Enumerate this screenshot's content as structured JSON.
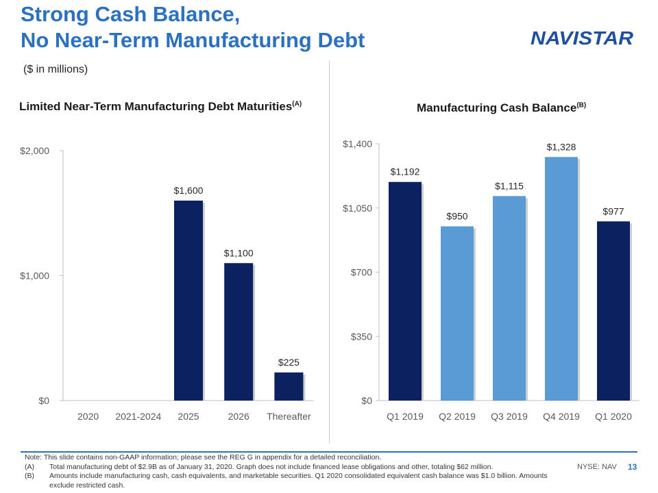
{
  "header": {
    "title_line1": "Strong Cash Balance,",
    "title_line2": "No Near-Term Manufacturing Debt",
    "subtitle": "($ in millions)",
    "logo_text": "NAVISTAR"
  },
  "colors": {
    "title_blue": "#2b71c2",
    "navy": "#0b2160",
    "light_blue": "#5b9bd5",
    "logo_blue": "#1f4fa0"
  },
  "chart_data": [
    {
      "type": "bar",
      "title": "Limited Near-Term Manufacturing Debt Maturities",
      "title_sup": "(A)",
      "categories": [
        "2020",
        "2021-2024",
        "2025",
        "2026",
        "Thereafter"
      ],
      "values": [
        0,
        0,
        1600,
        1100,
        225
      ],
      "data_labels": [
        "",
        "",
        "$1,600",
        "$1,100",
        "$225"
      ],
      "bar_colors": [
        "#0b2160",
        "#0b2160",
        "#0b2160",
        "#0b2160",
        "#0b2160"
      ],
      "yticks": [
        0,
        1000,
        2000
      ],
      "ytick_labels": [
        "$0",
        "$1,000",
        "$2,000"
      ],
      "ylim": [
        0,
        2000
      ],
      "grid": false
    },
    {
      "type": "bar",
      "title": "Manufacturing Cash Balance",
      "title_sup": "(B)",
      "categories": [
        "Q1 2019",
        "Q2 2019",
        "Q3 2019",
        "Q4 2019",
        "Q1 2020"
      ],
      "values": [
        1192,
        950,
        1115,
        1328,
        977
      ],
      "data_labels": [
        "$1,192",
        "$950",
        "$1,115",
        "$1,328",
        "$977"
      ],
      "bar_colors": [
        "#0b2160",
        "#5b9bd5",
        "#5b9bd5",
        "#5b9bd5",
        "#0b2160"
      ],
      "yticks": [
        0,
        350,
        700,
        1050,
        1400
      ],
      "ytick_labels": [
        "$0",
        "$350",
        "$700",
        "$1,050",
        "$1,400"
      ],
      "ylim": [
        0,
        1400
      ],
      "grid": false
    }
  ],
  "notes": {
    "intro": "Note: This slide contains non-GAAP information; please see the REG G in appendix for a detailed reconciliation.",
    "a_key": "(A)",
    "a_text": "Total manufacturing debt of $2.9B as of January 31, 2020. Graph does not include financed lease obligations and other, totaling $62 million.",
    "b_key": "(B)",
    "b_text": "Amounts include manufacturing cash, cash equivalents, and marketable securities. Q1 2020 consolidated equivalent cash balance was $1.0 billion. Amounts exclude restricted cash."
  },
  "footer": {
    "ticker": "NYSE: NAV",
    "page_number": "13"
  }
}
